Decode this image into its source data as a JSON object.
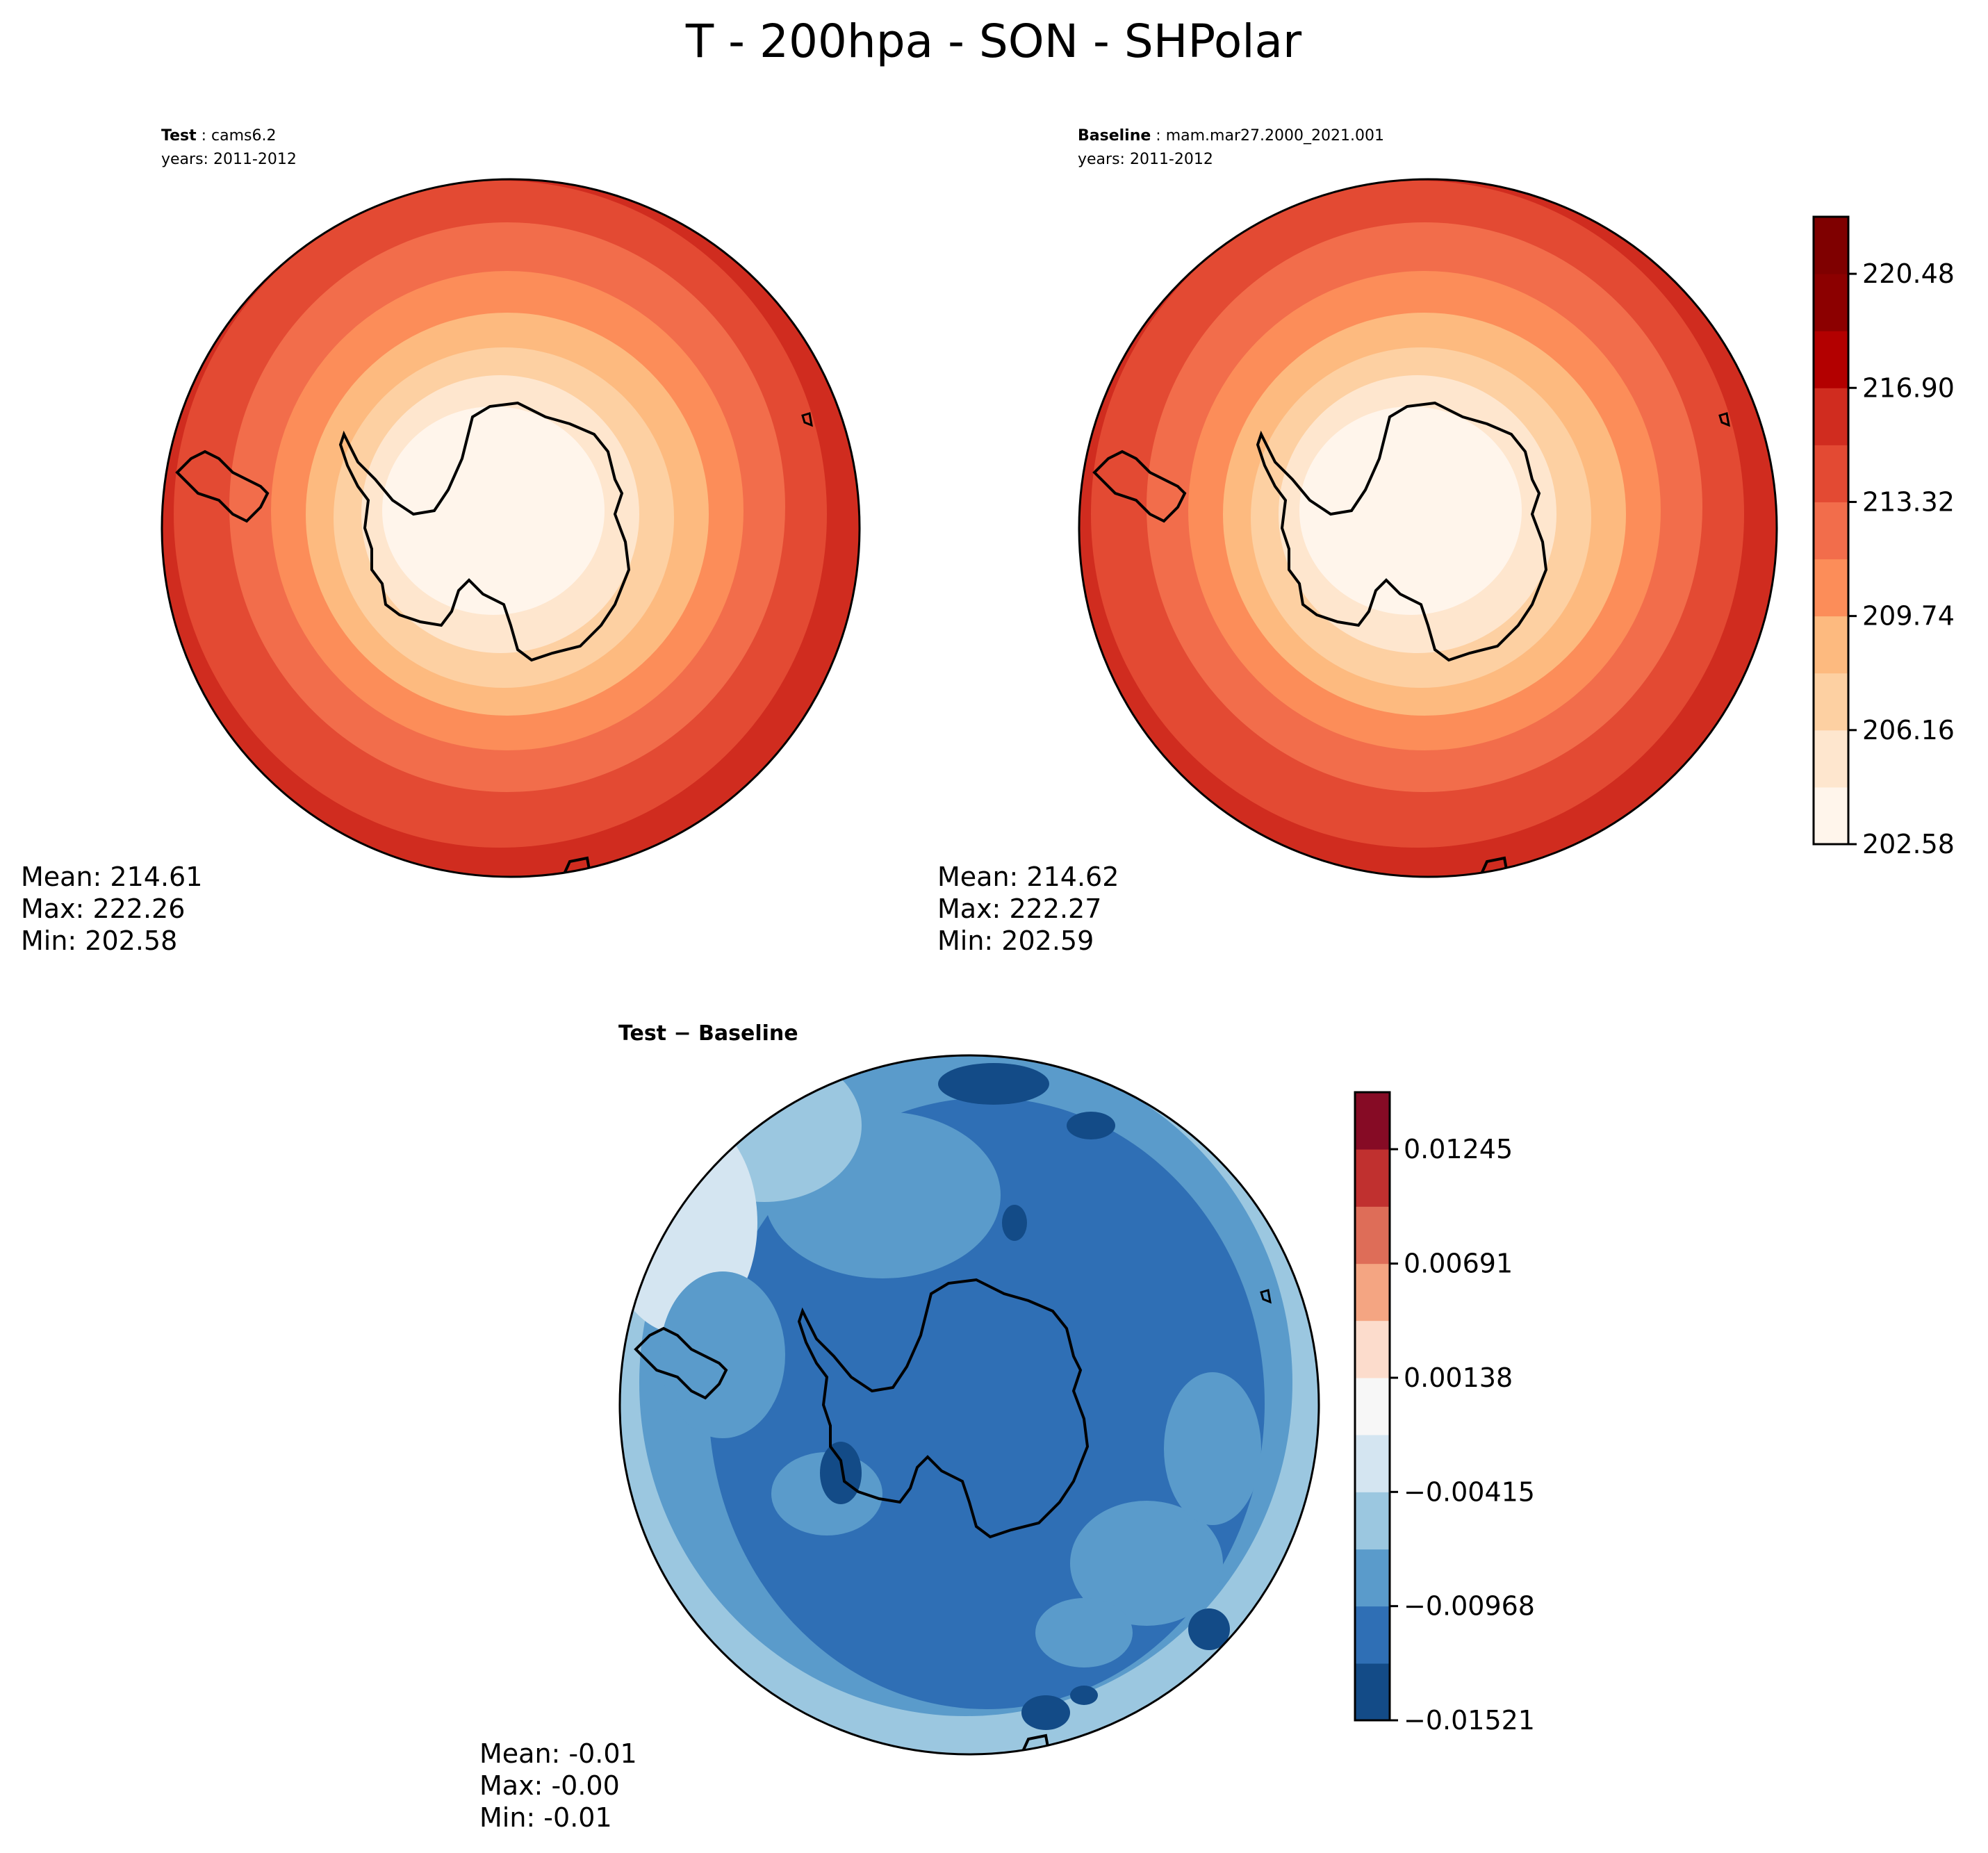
{
  "title": "T - 200hpa - SON - SHPolar",
  "panels": [
    {
      "label": "Test",
      "name": "cams6.2",
      "years": "years: 2011-2012",
      "stats": {
        "mean": "Mean: 214.61",
        "max": "Max: 222.26",
        "min": "Min: 202.58"
      }
    },
    {
      "label": "Baseline",
      "name": "mam.mar27.2000_2021.001",
      "years": "years: 2011-2012",
      "stats": {
        "mean": "Mean: 214.62",
        "max": "Max: 222.27",
        "min": "Min: 202.59"
      }
    },
    {
      "label": "Test − Baseline",
      "stats": {
        "mean": "Mean: -0.01",
        "max": "Max: -0.00",
        "min": "Min: -0.01"
      }
    }
  ],
  "chart_data": [
    {
      "type": "heatmap",
      "projection": "south-polar-stereographic",
      "name": "Test",
      "colorbar": {
        "levels": [
          202.58,
          204.37,
          206.16,
          207.95,
          209.74,
          211.53,
          213.32,
          215.11,
          216.9,
          218.69,
          220.48,
          222.27
        ],
        "tick_labels": [
          "202.58",
          "206.16",
          "209.74",
          "213.32",
          "216.90",
          "220.48"
        ],
        "colors": [
          "#fff5eb",
          "#fee6ce",
          "#fdd0a2",
          "#fdba7f",
          "#fc8d59",
          "#f26d4b",
          "#e34a33",
          "#d02c1f",
          "#b30000",
          "#8c0000",
          "#7f0000"
        ]
      },
      "stats": {
        "mean": 214.61,
        "max": 222.26,
        "min": 202.58
      }
    },
    {
      "type": "heatmap",
      "projection": "south-polar-stereographic",
      "name": "Baseline",
      "stats": {
        "mean": 214.62,
        "max": 222.27,
        "min": 202.59
      }
    },
    {
      "type": "heatmap",
      "projection": "south-polar-stereographic",
      "name": "Test − Baseline",
      "colorbar": {
        "levels": [
          -0.01521,
          -0.01245,
          -0.00968,
          -0.00692,
          -0.00415,
          -0.00138,
          0.00138,
          0.00415,
          0.00691,
          0.00968,
          0.01245,
          0.01521
        ],
        "tick_labels": [
          "−0.01521",
          "−0.00968",
          "−0.00415",
          "0.00138",
          "0.00691",
          "0.01245"
        ],
        "colors": [
          "#134b87",
          "#2f6fb5",
          "#5a9bcb",
          "#9bc7e0",
          "#d4e5f1",
          "#f7f7f7",
          "#fcdccc",
          "#f4a582",
          "#de6d58",
          "#c0302f",
          "#860b25"
        ]
      },
      "stats": {
        "mean": -0.01,
        "max": -0.0,
        "min": -0.01
      }
    }
  ]
}
